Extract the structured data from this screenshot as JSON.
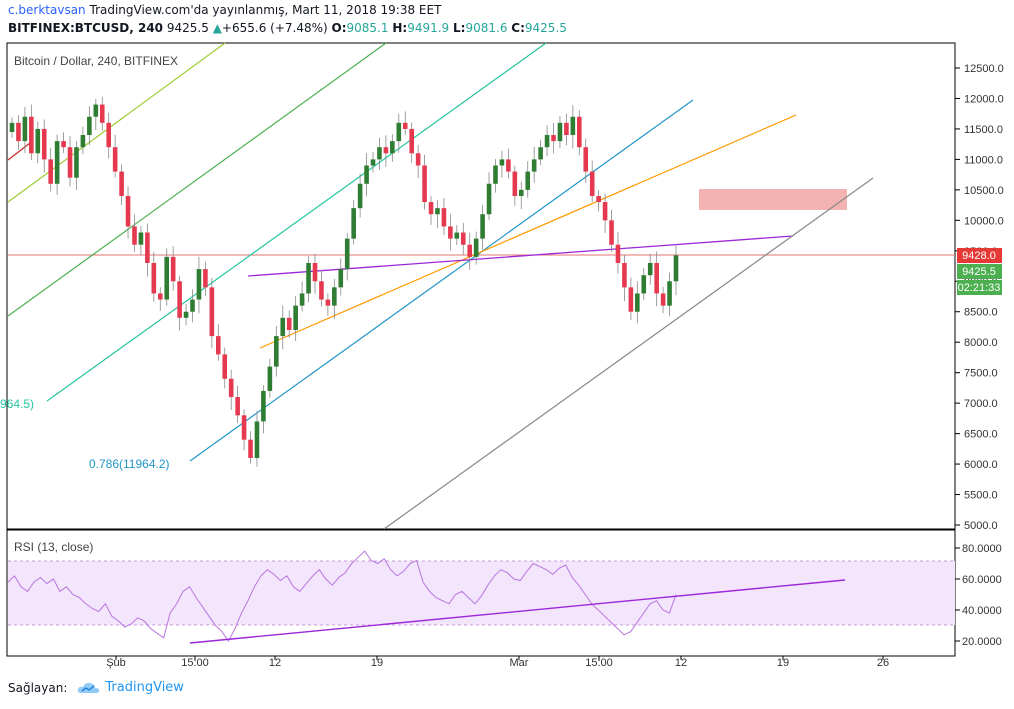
{
  "header": {
    "author": "c.berktavsan",
    "published": "TradingView.com'da yayınlanmış, Mart 11, 2018 19:38 EET",
    "symbol": "BITFINEX:BTCUSD, 240",
    "last": "9425.5",
    "change": "+655.6 (+7.48%)",
    "o_label": "O:",
    "o": "9085.1",
    "h_label": "H:",
    "h": "9491.9",
    "l_label": "L:",
    "l": "9081.6",
    "c_label": "C:",
    "c": "9425.5"
  },
  "chart_data": [
    {
      "type": "line",
      "title": "Bitcoin / Dollar, 240, BITFINEX",
      "candles": "BTCUSD 4h candlesticks, late Jan – Mar 11 2018",
      "y_ticks": [
        "5000.0",
        "5500.0",
        "6000.0",
        "6500.0",
        "7000.0",
        "7500.0",
        "8000.0",
        "8500.0",
        "9000.0",
        "9500.0",
        "10000.0",
        "10500.0",
        "11000.0",
        "11500.0",
        "12000.0",
        "12500.0"
      ],
      "ylim": [
        4950,
        12850
      ],
      "x_ticks": [
        "Şub",
        "15:00",
        "12",
        "19",
        "Mar",
        "15:00",
        "12",
        "19",
        "26"
      ],
      "price_labels": {
        "hline": "9428.0",
        "last": "9425.5",
        "countdown": "02:21:33"
      },
      "fib_labels": {
        "left": "964.5)",
        "bottom": "0.786(11964.2)"
      },
      "series": [
        {
          "y": [
            11600,
            11300,
            11700,
            11100,
            11500,
            11000,
            10600,
            11300,
            11200,
            10700,
            11200,
            11400,
            11700,
            11900,
            11600,
            11200,
            10800,
            10400,
            9900,
            9600,
            9800,
            9300,
            8800,
            8700,
            9400,
            9000,
            8400,
            8500,
            8700,
            9200,
            8900,
            8100,
            7800,
            7400,
            7100,
            6800,
            6400,
            6100,
            6700,
            7200,
            7600,
            8100,
            8400,
            8200,
            8600,
            8800,
            9300,
            9000,
            8700,
            8600,
            8900,
            9200,
            9700,
            10200,
            10600,
            10900,
            11000,
            11200,
            11100,
            11300,
            11600,
            11500,
            11100,
            10900,
            10300,
            10100,
            10200,
            9900,
            9700,
            9800,
            9600,
            9400,
            9700,
            10100,
            10600,
            10900,
            11000,
            10800,
            10400,
            10500,
            10800,
            11000,
            11200,
            11400,
            11300,
            11600,
            11400,
            11700,
            11200,
            10800,
            10400,
            10300,
            10000,
            9600,
            9300,
            8900,
            8500,
            8800,
            9100,
            9300,
            8800,
            8600,
            9000,
            9425
          ]
        }
      ]
    },
    {
      "type": "line",
      "title": "RSI (13, close)",
      "y_ticks": [
        "20.0000",
        "40.0000",
        "60.0000",
        "80.0000"
      ],
      "ylim": [
        15,
        83
      ],
      "band": [
        30,
        70
      ],
      "series": [
        {
          "name": "RSI",
          "y": [
            58,
            62,
            55,
            52,
            58,
            61,
            57,
            60,
            52,
            55,
            50,
            48,
            44,
            41,
            39,
            44,
            36,
            33,
            29,
            31,
            35,
            33,
            28,
            25,
            22,
            38,
            44,
            52,
            55,
            48,
            42,
            36,
            30,
            26,
            20,
            28,
            38,
            46,
            55,
            62,
            66,
            63,
            59,
            62,
            55,
            52,
            57,
            62,
            66,
            60,
            56,
            61,
            64,
            70,
            74,
            78,
            72,
            70,
            73,
            66,
            62,
            65,
            70,
            72,
            58,
            52,
            48,
            46,
            44,
            50,
            52,
            48,
            44,
            49,
            56,
            62,
            66,
            64,
            60,
            59,
            65,
            70,
            68,
            66,
            63,
            67,
            69,
            61,
            56,
            50,
            44,
            40,
            36,
            32,
            28,
            24,
            26,
            32,
            38,
            44,
            46,
            40,
            38,
            50
          ]
        }
      ]
    }
  ]
}
